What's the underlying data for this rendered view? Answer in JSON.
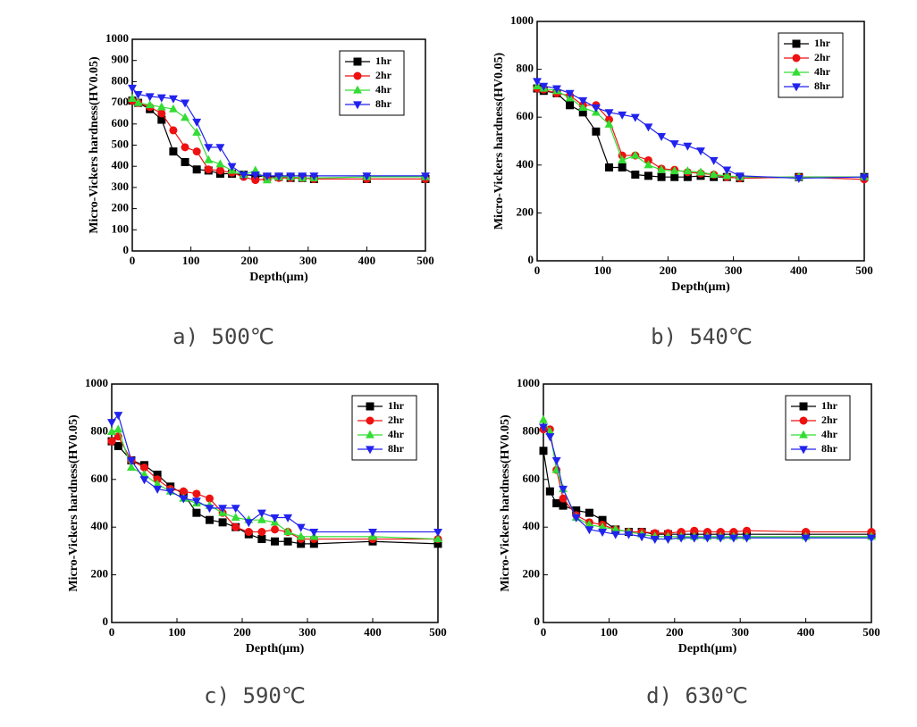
{
  "chart_data": [
    {
      "type": "line",
      "caption": "a) 500℃",
      "xlabel": "Depth(μm)",
      "ylabel": "Micro-Vickers hardness(HV0.05)",
      "xlim": [
        0,
        500
      ],
      "ylim": [
        0,
        1000
      ],
      "xticks": [
        0,
        100,
        200,
        300,
        400,
        500
      ],
      "yticks": [
        0,
        100,
        200,
        300,
        400,
        500,
        600,
        700,
        800,
        900,
        1000
      ],
      "legend": "upper right",
      "x": [
        0,
        10,
        30,
        50,
        70,
        90,
        110,
        130,
        150,
        170,
        190,
        210,
        230,
        250,
        270,
        290,
        310,
        400,
        500
      ],
      "series": [
        {
          "name": "1hr",
          "color": "#000000",
          "marker": "square",
          "values": [
            710,
            700,
            670,
            620,
            470,
            420,
            385,
            380,
            365,
            365,
            360,
            355,
            350,
            350,
            345,
            345,
            340,
            340,
            340
          ]
        },
        {
          "name": "2hr",
          "color": "#ee1111",
          "marker": "circle",
          "values": [
            710,
            700,
            680,
            650,
            570,
            490,
            470,
            385,
            380,
            370,
            350,
            335,
            340,
            345,
            345,
            345,
            340,
            340,
            340
          ]
        },
        {
          "name": "4hr",
          "color": "#33dd33",
          "marker": "triangle-up",
          "values": [
            720,
            700,
            690,
            680,
            670,
            630,
            560,
            430,
            410,
            380,
            360,
            380,
            335,
            350,
            350,
            345,
            345,
            350,
            350
          ]
        },
        {
          "name": "8hr",
          "color": "#2222ee",
          "marker": "triangle-down",
          "values": [
            770,
            740,
            730,
            725,
            720,
            700,
            610,
            490,
            490,
            400,
            360,
            360,
            355,
            355,
            355,
            355,
            355,
            355,
            355
          ]
        }
      ]
    },
    {
      "type": "line",
      "caption": "b) 540℃",
      "xlabel": "Depth(μm)",
      "ylabel": "Micro-Vickers hardness(HV0.05)",
      "xlim": [
        0,
        500
      ],
      "ylim": [
        0,
        1000
      ],
      "xticks": [
        0,
        100,
        200,
        300,
        400,
        500
      ],
      "yticks": [
        0,
        200,
        400,
        600,
        800,
        1000
      ],
      "legend": "upper right",
      "x": [
        0,
        10,
        30,
        50,
        70,
        90,
        110,
        130,
        150,
        170,
        190,
        210,
        230,
        250,
        270,
        290,
        310,
        400,
        500
      ],
      "series": [
        {
          "name": "1hr",
          "color": "#000000",
          "marker": "square",
          "values": [
            720,
            710,
            700,
            650,
            620,
            540,
            390,
            390,
            360,
            355,
            350,
            350,
            350,
            355,
            350,
            350,
            345,
            350,
            350
          ]
        },
        {
          "name": "2hr",
          "color": "#ee1111",
          "marker": "circle",
          "values": [
            720,
            715,
            700,
            690,
            650,
            650,
            590,
            440,
            440,
            420,
            385,
            380,
            370,
            365,
            360,
            350,
            345,
            350,
            340
          ]
        },
        {
          "name": "4hr",
          "color": "#33dd33",
          "marker": "triangle-up",
          "values": [
            730,
            720,
            710,
            680,
            640,
            620,
            570,
            420,
            440,
            400,
            380,
            375,
            375,
            370,
            360,
            355,
            350,
            350,
            350
          ]
        },
        {
          "name": "8hr",
          "color": "#2222ee",
          "marker": "triangle-down",
          "values": [
            750,
            730,
            720,
            700,
            670,
            640,
            620,
            610,
            600,
            560,
            520,
            490,
            480,
            460,
            420,
            380,
            355,
            345,
            350
          ]
        }
      ]
    },
    {
      "type": "line",
      "caption": "c) 590℃",
      "xlabel": "Depth(μm)",
      "ylabel": "Micro-Vickers hardness(HV0.05)",
      "xlim": [
        0,
        500
      ],
      "ylim": [
        0,
        1000
      ],
      "xticks": [
        0,
        100,
        200,
        300,
        400,
        500
      ],
      "yticks": [
        0,
        200,
        400,
        600,
        800,
        1000
      ],
      "legend": "upper right",
      "x": [
        0,
        10,
        30,
        50,
        70,
        90,
        110,
        130,
        150,
        170,
        190,
        210,
        230,
        250,
        270,
        290,
        310,
        400,
        500
      ],
      "series": [
        {
          "name": "1hr",
          "color": "#000000",
          "marker": "square",
          "values": [
            760,
            740,
            680,
            660,
            620,
            570,
            540,
            460,
            430,
            420,
            400,
            370,
            350,
            340,
            340,
            330,
            330,
            340,
            330
          ]
        },
        {
          "name": "2hr",
          "color": "#ee1111",
          "marker": "circle",
          "values": [
            760,
            780,
            680,
            650,
            600,
            560,
            550,
            540,
            520,
            460,
            400,
            380,
            380,
            390,
            380,
            350,
            350,
            350,
            350
          ]
        },
        {
          "name": "4hr",
          "color": "#33dd33",
          "marker": "triangle-up",
          "values": [
            800,
            810,
            650,
            620,
            580,
            550,
            520,
            500,
            490,
            460,
            440,
            430,
            430,
            420,
            380,
            360,
            360,
            360,
            350
          ]
        },
        {
          "name": "8hr",
          "color": "#2222ee",
          "marker": "triangle-down",
          "values": [
            840,
            870,
            680,
            600,
            560,
            550,
            520,
            510,
            480,
            480,
            480,
            420,
            460,
            440,
            440,
            400,
            380,
            380,
            380
          ]
        }
      ]
    },
    {
      "type": "line",
      "caption": "d) 630℃",
      "xlabel": "Depth(μm)",
      "ylabel": "Micro-Vickers hardness(HV0.05)",
      "xlim": [
        0,
        500
      ],
      "ylim": [
        0,
        1000
      ],
      "xticks": [
        0,
        100,
        200,
        300,
        400,
        500
      ],
      "yticks": [
        0,
        200,
        400,
        600,
        800,
        1000
      ],
      "legend": "upper right",
      "x": [
        0,
        10,
        20,
        30,
        50,
        70,
        90,
        110,
        130,
        150,
        170,
        190,
        210,
        230,
        250,
        270,
        290,
        310,
        400,
        500
      ],
      "series": [
        {
          "name": "1hr",
          "color": "#000000",
          "marker": "square",
          "values": [
            720,
            550,
            500,
            490,
            470,
            460,
            430,
            390,
            380,
            380,
            370,
            370,
            370,
            370,
            370,
            370,
            370,
            370,
            370,
            370
          ]
        },
        {
          "name": "2hr",
          "color": "#ee1111",
          "marker": "circle",
          "values": [
            810,
            810,
            640,
            520,
            450,
            420,
            410,
            390,
            380,
            380,
            375,
            375,
            380,
            385,
            380,
            380,
            380,
            385,
            380,
            380
          ]
        },
        {
          "name": "4hr",
          "color": "#33dd33",
          "marker": "triangle-up",
          "values": [
            850,
            800,
            640,
            560,
            440,
            410,
            400,
            390,
            380,
            370,
            360,
            360,
            360,
            360,
            360,
            360,
            360,
            360,
            360,
            360
          ]
        },
        {
          "name": "8hr",
          "color": "#2222ee",
          "marker": "triangle-down",
          "values": [
            820,
            780,
            680,
            560,
            440,
            390,
            380,
            370,
            370,
            360,
            350,
            350,
            355,
            355,
            355,
            355,
            355,
            355,
            355,
            355
          ]
        }
      ]
    }
  ]
}
